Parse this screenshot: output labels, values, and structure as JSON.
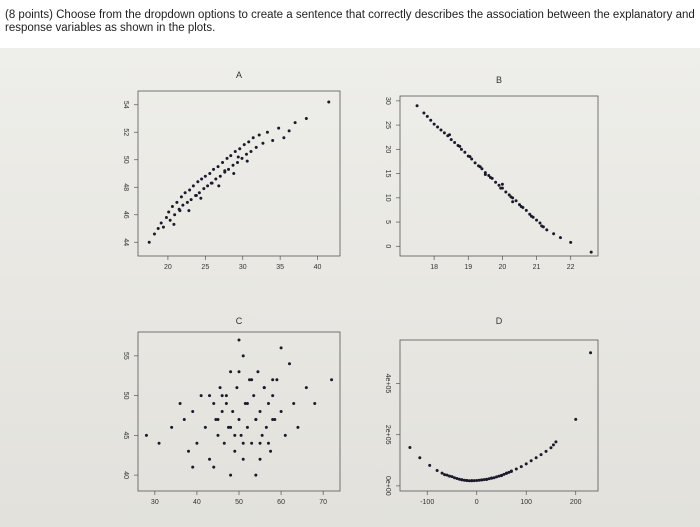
{
  "question": {
    "text": "(8 points) Choose from the dropdown options to create a sentence that correctly describes the association between the explanatory and response variables as shown in the plots."
  },
  "chart_data": [
    {
      "title": "A",
      "type": "scatter",
      "xlim": [
        16,
        43
      ],
      "ylim": [
        43,
        55
      ],
      "xticks": [
        "20",
        "25",
        "30",
        "35",
        "40"
      ],
      "xtick_values": [
        20,
        25,
        30,
        35,
        40
      ],
      "yticks": [
        "44",
        "46",
        "48",
        "50",
        "52",
        "54"
      ],
      "ytick_values": [
        44,
        46,
        48,
        50,
        52,
        54
      ],
      "x": [
        17.5,
        18.2,
        18.7,
        19.1,
        19.4,
        19.8,
        20.1,
        20.3,
        20.6,
        20.9,
        21.2,
        21.5,
        21.8,
        22.0,
        22.3,
        22.6,
        22.9,
        23.1,
        23.4,
        23.7,
        24.0,
        24.2,
        24.5,
        24.8,
        25.0,
        25.3,
        25.6,
        25.9,
        26.1,
        26.4,
        26.7,
        27.0,
        27.3,
        27.6,
        27.9,
        28.1,
        28.4,
        28.7,
        29.0,
        29.3,
        29.6,
        29.9,
        30.2,
        30.5,
        30.8,
        31.1,
        31.4,
        31.8,
        32.2,
        32.7,
        33.3,
        34.0,
        34.8,
        35.5,
        36.2,
        37.0,
        38.5,
        41.5,
        20.8,
        22.8,
        24.4,
        26.8,
        28.8,
        30.6,
        21.6,
        23.8,
        25.8,
        27.6,
        29.4
      ],
      "y": [
        44.0,
        44.6,
        45.0,
        45.4,
        45.1,
        45.8,
        46.2,
        45.6,
        46.6,
        46.0,
        46.9,
        46.4,
        47.3,
        46.7,
        47.6,
        46.9,
        47.8,
        47.1,
        48.1,
        47.4,
        48.4,
        47.6,
        48.6,
        47.9,
        48.8,
        48.1,
        49.0,
        48.3,
        49.3,
        48.6,
        49.5,
        48.8,
        49.8,
        49.1,
        50.1,
        49.3,
        50.3,
        49.6,
        50.6,
        49.8,
        50.8,
        50.1,
        51.1,
        50.4,
        51.3,
        50.6,
        51.6,
        50.9,
        51.8,
        51.2,
        52.0,
        51.4,
        52.3,
        51.6,
        52.1,
        52.7,
        53.0,
        54.2,
        45.3,
        46.3,
        47.2,
        48.1,
        49.0,
        49.9,
        46.3,
        47.4,
        48.3,
        49.2,
        50.2
      ]
    },
    {
      "title": "B",
      "type": "scatter",
      "xlim": [
        17.0,
        22.8
      ],
      "xticks": [
        "18",
        "19",
        "20",
        "21",
        "22"
      ],
      "xtick_values": [
        18,
        19,
        20,
        21,
        22
      ],
      "ylim": [
        -2,
        31
      ],
      "yticks": [
        "0",
        "5",
        "10",
        "15",
        "20",
        "25",
        "30"
      ],
      "ytick_values": [
        0,
        5,
        10,
        15,
        20,
        25,
        30
      ],
      "x": [
        17.5,
        17.7,
        17.8,
        17.9,
        18.0,
        18.1,
        18.2,
        18.3,
        18.4,
        18.5,
        18.6,
        18.7,
        18.8,
        18.9,
        19.0,
        19.1,
        19.2,
        19.3,
        19.4,
        19.5,
        19.6,
        19.7,
        19.8,
        19.9,
        20.0,
        20.1,
        20.2,
        20.3,
        20.4,
        20.5,
        20.6,
        20.7,
        20.8,
        20.9,
        21.0,
        21.1,
        21.2,
        21.3,
        21.5,
        21.7,
        22.0,
        22.6,
        18.45,
        18.75,
        19.05,
        19.35,
        19.65,
        19.95,
        20.25,
        20.55,
        20.85,
        21.15,
        19.5,
        20.0,
        20.3
      ],
      "y": [
        29.0,
        27.5,
        26.8,
        26.0,
        25.2,
        24.6,
        24.0,
        23.4,
        22.8,
        22.0,
        21.4,
        20.8,
        20.0,
        19.4,
        18.6,
        18.0,
        17.2,
        16.6,
        16.0,
        15.2,
        14.6,
        14.0,
        13.2,
        12.6,
        12.0,
        11.2,
        10.6,
        10.0,
        9.4,
        8.6,
        8.0,
        7.4,
        6.6,
        6.0,
        5.4,
        4.8,
        4.0,
        3.4,
        2.6,
        1.8,
        0.8,
        -1.2,
        23.0,
        20.6,
        18.5,
        16.4,
        14.2,
        12.0,
        10.2,
        8.2,
        6.2,
        4.2,
        14.8,
        12.8,
        9.2
      ]
    },
    {
      "title": "C",
      "type": "scatter",
      "xlim": [
        26,
        74
      ],
      "xticks": [
        "30",
        "40",
        "50",
        "60",
        "70"
      ],
      "xtick_values": [
        30,
        40,
        50,
        60,
        70
      ],
      "ylim": [
        38,
        58
      ],
      "yticks": [
        "40",
        "45",
        "50",
        "55"
      ],
      "ytick_values": [
        40,
        45,
        50,
        55
      ],
      "x": [
        28,
        31,
        34,
        36,
        37,
        38,
        39,
        40,
        41,
        42,
        43,
        44,
        44.5,
        45,
        45.5,
        46,
        46.5,
        47,
        47.5,
        48,
        48.5,
        49,
        49.5,
        50,
        50.5,
        51,
        51.5,
        52,
        52.5,
        53,
        53.5,
        54,
        54.5,
        55,
        55.5,
        56,
        56.5,
        57,
        57.5,
        58,
        58.5,
        59,
        60,
        61,
        62,
        63,
        64,
        66,
        68,
        72,
        44,
        48,
        51,
        54,
        57,
        46,
        50,
        53,
        56,
        45,
        49,
        52,
        55,
        58,
        47,
        51,
        54,
        58,
        43,
        60,
        50,
        39,
        55,
        48
      ],
      "y": [
        45,
        44,
        46,
        49,
        47,
        43,
        48,
        44,
        50,
        46,
        42,
        49,
        47,
        45,
        51,
        48,
        44,
        50,
        46,
        53,
        48,
        43,
        51,
        47,
        45,
        55,
        49,
        46,
        52,
        44,
        50,
        47,
        53,
        48,
        45,
        51,
        46,
        49,
        43,
        50,
        47,
        52,
        48,
        45,
        54,
        49,
        46,
        51,
        49,
        52,
        41,
        40,
        42,
        40,
        44,
        50,
        53,
        52,
        51,
        47,
        45,
        49,
        44,
        52,
        49,
        44,
        47,
        47,
        50,
        56,
        57,
        41,
        42,
        46
      ]
    },
    {
      "title": "D",
      "type": "scatter",
      "xlim": [
        -155,
        245
      ],
      "xticks": [
        "-100",
        "0",
        "100",
        "200"
      ],
      "xtick_values": [
        -100,
        0,
        100,
        200
      ],
      "ylim": [
        -20000,
        570000
      ],
      "yticks": [
        "0e+00",
        "2e+05",
        "4e+05"
      ],
      "ytick_values": [
        0,
        200000,
        400000
      ],
      "x": [
        -135,
        -115,
        -95,
        -80,
        -70,
        -60,
        -50,
        -45,
        -40,
        -35,
        -30,
        -25,
        -20,
        -15,
        -10,
        -5,
        0,
        5,
        10,
        15,
        20,
        25,
        30,
        35,
        40,
        45,
        50,
        55,
        60,
        65,
        70,
        80,
        90,
        100,
        110,
        120,
        130,
        140,
        150,
        155,
        160,
        200,
        230,
        -55,
        -30,
        -10,
        10,
        30,
        50,
        70,
        -65,
        -20,
        20,
        60
      ],
      "y": [
        150000,
        110000,
        80000,
        60000,
        50000,
        42000,
        36000,
        32000,
        29000,
        26000,
        24000,
        22000,
        21000,
        20000,
        20000,
        20500,
        21000,
        22000,
        23000,
        24500,
        26000,
        28000,
        30000,
        32000,
        35000,
        38000,
        41000,
        45000,
        49000,
        53000,
        58000,
        66000,
        75000,
        86000,
        98000,
        110000,
        122000,
        135000,
        149000,
        160000,
        172000,
        260000,
        520000,
        38000,
        24000,
        20500,
        23500,
        31000,
        40000,
        56000,
        44000,
        21000,
        25000,
        50000
      ]
    }
  ]
}
